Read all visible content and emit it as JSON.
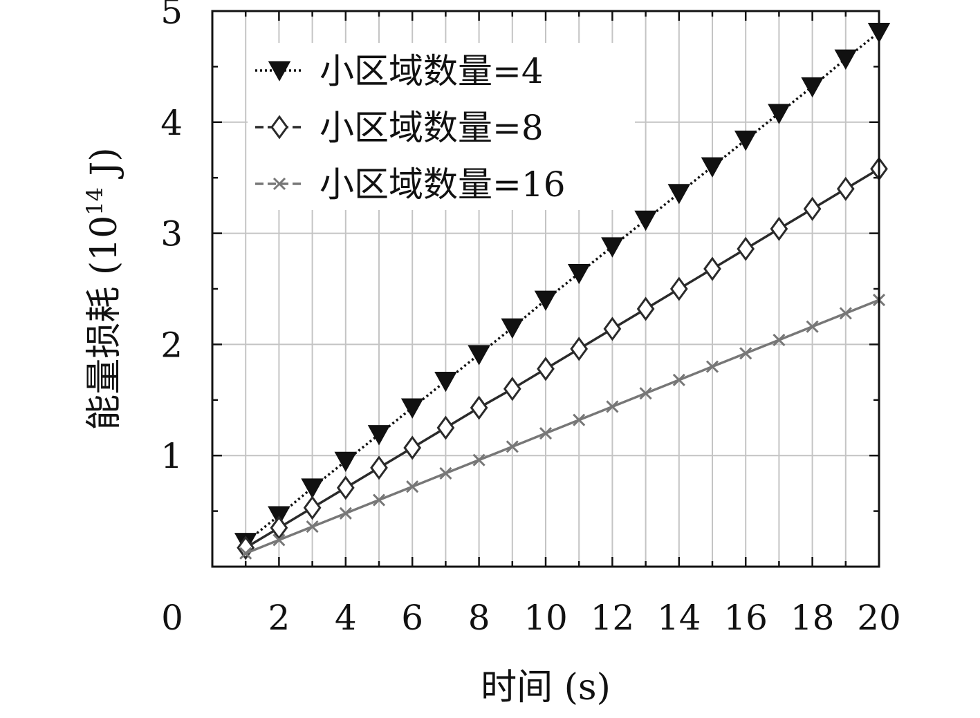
{
  "chart_data": {
    "type": "line",
    "xlabel": "时间 (s)",
    "ylabel_main": "能量损耗 (10",
    "ylabel_exp": "14",
    "ylabel_unit": " J)",
    "xlim": [
      0,
      20
    ],
    "ylim": [
      0,
      5
    ],
    "x_ticks": [
      "0",
      "2",
      "4",
      "6",
      "8",
      "10",
      "12",
      "14",
      "16",
      "18",
      "20"
    ],
    "y_ticks": [
      "1",
      "2",
      "3",
      "4",
      "5"
    ],
    "grid": true,
    "legend_position": "top-left",
    "x": [
      1,
      2,
      3,
      4,
      5,
      6,
      7,
      8,
      9,
      10,
      11,
      12,
      13,
      14,
      15,
      16,
      17,
      18,
      19,
      20
    ],
    "series": [
      {
        "name": "小区域数量=4",
        "marker": "triangle-down-filled",
        "line_style": "dotted",
        "color": "#111111",
        "values": [
          0.22,
          0.46,
          0.71,
          0.95,
          1.19,
          1.43,
          1.67,
          1.91,
          2.15,
          2.4,
          2.64,
          2.88,
          3.12,
          3.36,
          3.6,
          3.84,
          4.08,
          4.32,
          4.57,
          4.81
        ]
      },
      {
        "name": "小区域数量=8",
        "marker": "diamond-open",
        "line_style": "solid",
        "color": "#2a2a2a",
        "values": [
          0.17,
          0.35,
          0.53,
          0.71,
          0.89,
          1.07,
          1.25,
          1.43,
          1.6,
          1.78,
          1.96,
          2.14,
          2.32,
          2.5,
          2.68,
          2.86,
          3.04,
          3.22,
          3.4,
          3.58
        ]
      },
      {
        "name": "小区域数量=16",
        "marker": "x",
        "line_style": "solid",
        "color": "#777777",
        "values": [
          0.12,
          0.24,
          0.36,
          0.48,
          0.6,
          0.72,
          0.84,
          0.96,
          1.08,
          1.2,
          1.32,
          1.44,
          1.56,
          1.68,
          1.8,
          1.92,
          2.04,
          2.16,
          2.28,
          2.4
        ]
      }
    ]
  }
}
